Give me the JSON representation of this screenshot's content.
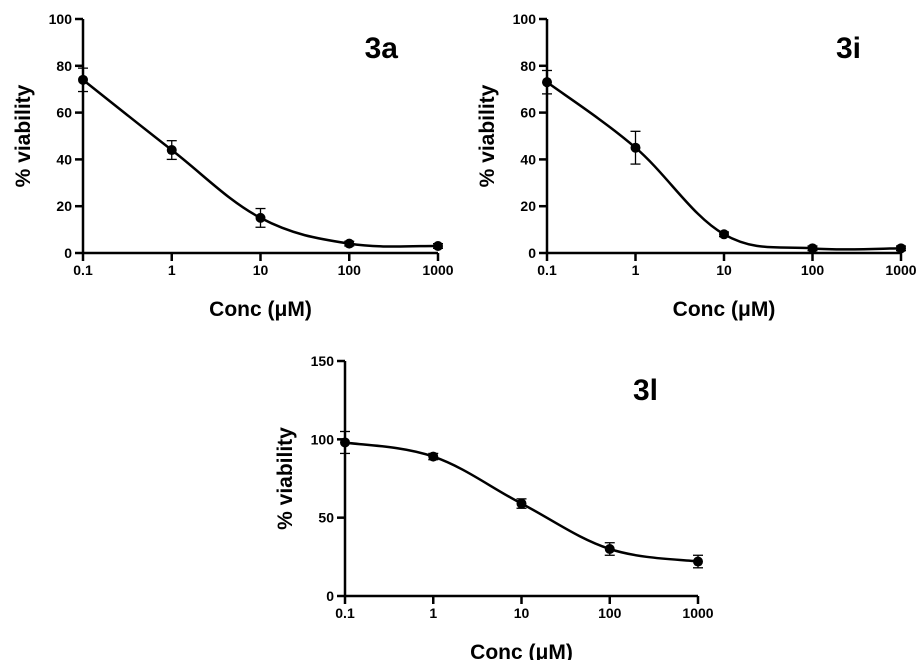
{
  "chart_data": [
    {
      "type": "scatter",
      "panel_label": "3a",
      "xlabel": "Conc (μM)",
      "ylabel": "% viability",
      "xscale": "log",
      "xlim": [
        0.1,
        1000
      ],
      "ylim": [
        0,
        100
      ],
      "xtick_labels": [
        "0.1",
        "1",
        "10",
        "100",
        "1000"
      ],
      "yticks": [
        0,
        20,
        40,
        60,
        80,
        100
      ],
      "x": [
        0.1,
        1,
        10,
        100,
        1000
      ],
      "y": [
        74,
        44,
        15,
        4,
        3
      ],
      "yerr": [
        5,
        4,
        4,
        1,
        1
      ],
      "fit_curve": true
    },
    {
      "type": "scatter",
      "panel_label": "3i",
      "xlabel": "Conc (μM)",
      "ylabel": "% viability",
      "xscale": "log",
      "xlim": [
        0.1,
        1000
      ],
      "ylim": [
        0,
        100
      ],
      "xtick_labels": [
        "0.1",
        "1",
        "10",
        "100",
        "1000"
      ],
      "yticks": [
        0,
        20,
        40,
        60,
        80,
        100
      ],
      "x": [
        0.1,
        1,
        10,
        100,
        1000
      ],
      "y": [
        73,
        45,
        8,
        2,
        2
      ],
      "yerr": [
        5,
        7,
        1,
        1,
        1
      ],
      "fit_curve": true
    },
    {
      "type": "scatter",
      "panel_label": "3l",
      "xlabel": "Conc (μM)",
      "ylabel": "% viability",
      "xscale": "log",
      "xlim": [
        0.1,
        1000
      ],
      "ylim": [
        0,
        150
      ],
      "xtick_labels": [
        "0.1",
        "1",
        "10",
        "100",
        "1000"
      ],
      "yticks": [
        0,
        50,
        100,
        150
      ],
      "x": [
        0.1,
        1,
        10,
        100,
        1000
      ],
      "y": [
        98,
        89,
        59,
        30,
        22
      ],
      "yerr": [
        7,
        2,
        3,
        4,
        4
      ],
      "fit_curve": true
    }
  ]
}
